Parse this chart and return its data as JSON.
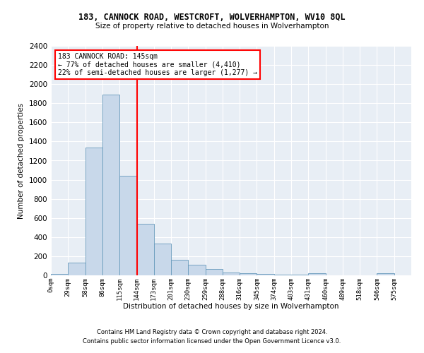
{
  "title": "183, CANNOCK ROAD, WESTCROFT, WOLVERHAMPTON, WV10 8QL",
  "subtitle": "Size of property relative to detached houses in Wolverhampton",
  "xlabel": "Distribution of detached houses by size in Wolverhampton",
  "ylabel": "Number of detached properties",
  "bar_color": "#c8d8ea",
  "bar_edge_color": "#6699bb",
  "bg_color": "#e8eef5",
  "annotation_text_line1": "183 CANNOCK ROAD: 145sqm",
  "annotation_text_line2": "← 77% of detached houses are smaller (4,410)",
  "annotation_text_line3": "22% of semi-detached houses are larger (1,277) →",
  "categories": [
    "0sqm",
    "29sqm",
    "58sqm",
    "86sqm",
    "115sqm",
    "144sqm",
    "173sqm",
    "201sqm",
    "230sqm",
    "259sqm",
    "288sqm",
    "316sqm",
    "345sqm",
    "374sqm",
    "403sqm",
    "431sqm",
    "460sqm",
    "489sqm",
    "518sqm",
    "546sqm",
    "575sqm"
  ],
  "values": [
    15,
    130,
    1340,
    1890,
    1040,
    540,
    335,
    165,
    110,
    65,
    30,
    20,
    12,
    8,
    5,
    20,
    3,
    3,
    2,
    20,
    3
  ],
  "ylim": [
    0,
    2400
  ],
  "yticks": [
    0,
    200,
    400,
    600,
    800,
    1000,
    1200,
    1400,
    1600,
    1800,
    2000,
    2200,
    2400
  ],
  "footer_line1": "Contains HM Land Registry data © Crown copyright and database right 2024.",
  "footer_line2": "Contains public sector information licensed under the Open Government Licence v3.0."
}
